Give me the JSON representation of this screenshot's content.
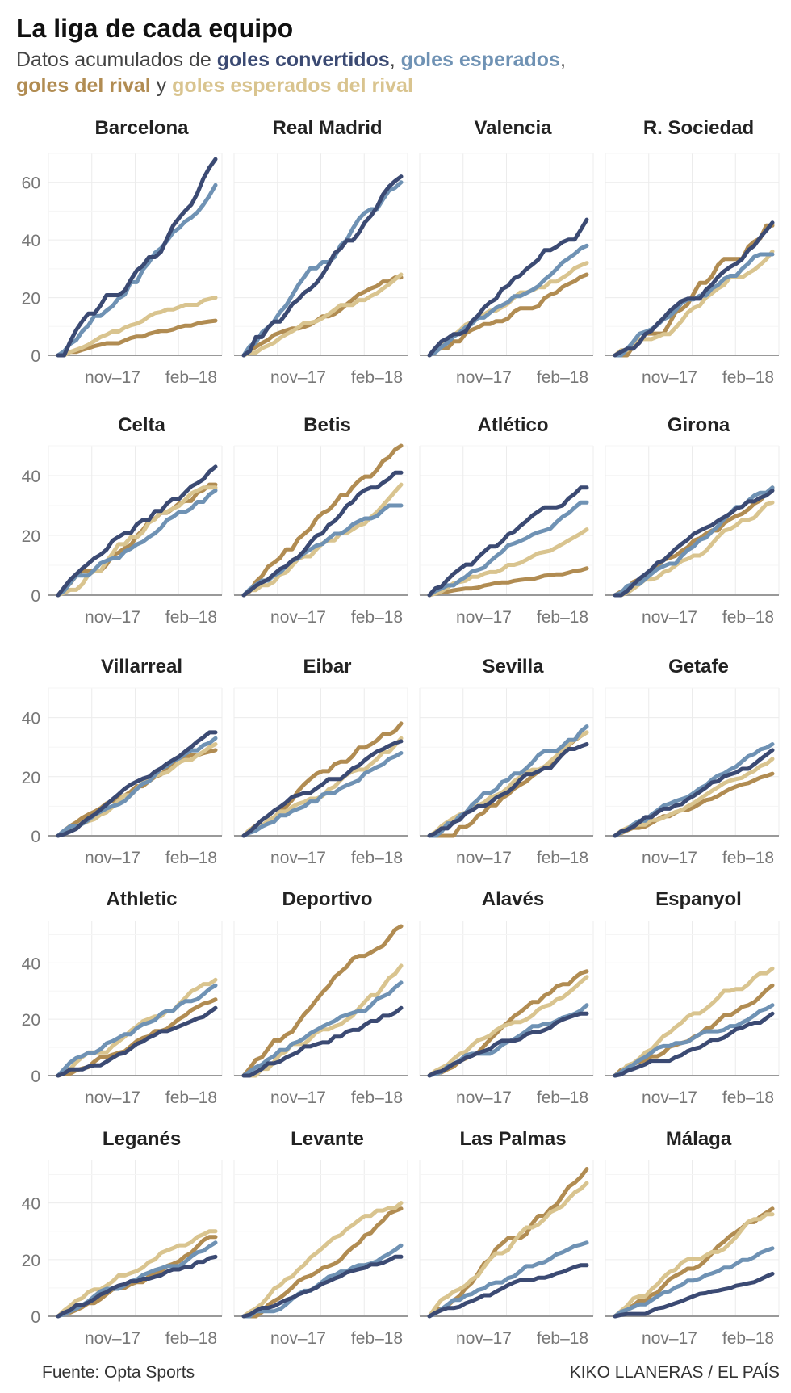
{
  "header": {
    "title": "La liga de cada equipo",
    "subtitle_prefix": "Datos acumulados de ",
    "legend_convertidos": "goles convertidos",
    "sep1": ", ",
    "legend_esperados": "goles esperados",
    "sep2": ",",
    "legend_rival": "goles del rival",
    "conj": " y ",
    "legend_esperados_rival": "goles esperados del rival"
  },
  "footer": {
    "source": "Fuente: Opta Sports",
    "credit": "KIKO LLANERAS / EL PAÍS"
  },
  "colors": {
    "goles_convertidos": "#3b4a73",
    "goles_esperados": "#6f92b4",
    "goles_rival": "#b18c52",
    "goles_esperados_rival": "#d9c48f",
    "grid": "#ececec",
    "axis": "#999999"
  },
  "chart_data": {
    "type": "line",
    "xlabel": "",
    "ylabel": "",
    "x_tick_labels": [
      "nov–17",
      "feb–18"
    ],
    "x_ticks_week": [
      10,
      23
    ],
    "x_range_weeks": [
      1,
      27
    ],
    "series_names": [
      "goles convertidos",
      "goles esperados",
      "goles del rival",
      "goles esperados del rival"
    ],
    "rows": [
      {
        "ylim": [
          0,
          70
        ],
        "yticks": [
          0,
          20,
          40,
          60
        ]
      },
      {
        "ylim": [
          0,
          50
        ],
        "yticks": [
          0,
          20,
          40
        ]
      },
      {
        "ylim": [
          0,
          50
        ],
        "yticks": [
          0,
          20,
          40
        ]
      },
      {
        "ylim": [
          0,
          55
        ],
        "yticks": [
          0,
          20,
          40
        ]
      },
      {
        "ylim": [
          0,
          55
        ],
        "yticks": [
          0,
          20,
          40
        ]
      }
    ],
    "teams": [
      {
        "name": "Barcelona",
        "final": {
          "goles_convertidos": 68,
          "goles_esperados": 59,
          "goles_rival": 12,
          "goles_esperados_rival": 20
        }
      },
      {
        "name": "Real Madrid",
        "final": {
          "goles_convertidos": 62,
          "goles_esperados": 60,
          "goles_rival": 27,
          "goles_esperados_rival": 28
        }
      },
      {
        "name": "Valencia",
        "final": {
          "goles_convertidos": 47,
          "goles_esperados": 38,
          "goles_rival": 28,
          "goles_esperados_rival": 32
        }
      },
      {
        "name": "R. Sociedad",
        "final": {
          "goles_convertidos": 46,
          "goles_esperados": 35,
          "goles_rival": 45,
          "goles_esperados_rival": 36
        }
      },
      {
        "name": "Celta",
        "final": {
          "goles_convertidos": 43,
          "goles_esperados": 35,
          "goles_rival": 37,
          "goles_esperados_rival": 36
        }
      },
      {
        "name": "Betis",
        "final": {
          "goles_convertidos": 41,
          "goles_esperados": 30,
          "goles_rival": 50,
          "goles_esperados_rival": 37
        }
      },
      {
        "name": "Atlético",
        "final": {
          "goles_convertidos": 36,
          "goles_esperados": 31,
          "goles_rival": 9,
          "goles_esperados_rival": 22
        }
      },
      {
        "name": "Girona",
        "final": {
          "goles_convertidos": 35,
          "goles_esperados": 36,
          "goles_rival": 36,
          "goles_esperados_rival": 31
        }
      },
      {
        "name": "Villarreal",
        "final": {
          "goles_convertidos": 35,
          "goles_esperados": 33,
          "goles_rival": 29,
          "goles_esperados_rival": 31
        }
      },
      {
        "name": "Eibar",
        "final": {
          "goles_convertidos": 32,
          "goles_esperados": 28,
          "goles_rival": 38,
          "goles_esperados_rival": 33
        }
      },
      {
        "name": "Sevilla",
        "final": {
          "goles_convertidos": 31,
          "goles_esperados": 37,
          "goles_rival": 35,
          "goles_esperados_rival": 35
        }
      },
      {
        "name": "Getafe",
        "final": {
          "goles_convertidos": 29,
          "goles_esperados": 31,
          "goles_rival": 21,
          "goles_esperados_rival": 26
        }
      },
      {
        "name": "Athletic",
        "final": {
          "goles_convertidos": 24,
          "goles_esperados": 32,
          "goles_rival": 27,
          "goles_esperados_rival": 34
        }
      },
      {
        "name": "Deportivo",
        "final": {
          "goles_convertidos": 24,
          "goles_esperados": 33,
          "goles_rival": 53,
          "goles_esperados_rival": 39
        }
      },
      {
        "name": "Alavés",
        "final": {
          "goles_convertidos": 22,
          "goles_esperados": 25,
          "goles_rival": 37,
          "goles_esperados_rival": 35
        }
      },
      {
        "name": "Espanyol",
        "final": {
          "goles_convertidos": 22,
          "goles_esperados": 25,
          "goles_rival": 32,
          "goles_esperados_rival": 38
        }
      },
      {
        "name": "Leganés",
        "final": {
          "goles_convertidos": 21,
          "goles_esperados": 26,
          "goles_rival": 28,
          "goles_esperados_rival": 30
        }
      },
      {
        "name": "Levante",
        "final": {
          "goles_convertidos": 21,
          "goles_esperados": 25,
          "goles_rival": 38,
          "goles_esperados_rival": 40
        }
      },
      {
        "name": "Las Palmas",
        "final": {
          "goles_convertidos": 18,
          "goles_esperados": 26,
          "goles_rival": 52,
          "goles_esperados_rival": 47
        }
      },
      {
        "name": "Málaga",
        "final": {
          "goles_convertidos": 15,
          "goles_esperados": 24,
          "goles_rival": 38,
          "goles_esperados_rival": 36
        }
      }
    ]
  }
}
